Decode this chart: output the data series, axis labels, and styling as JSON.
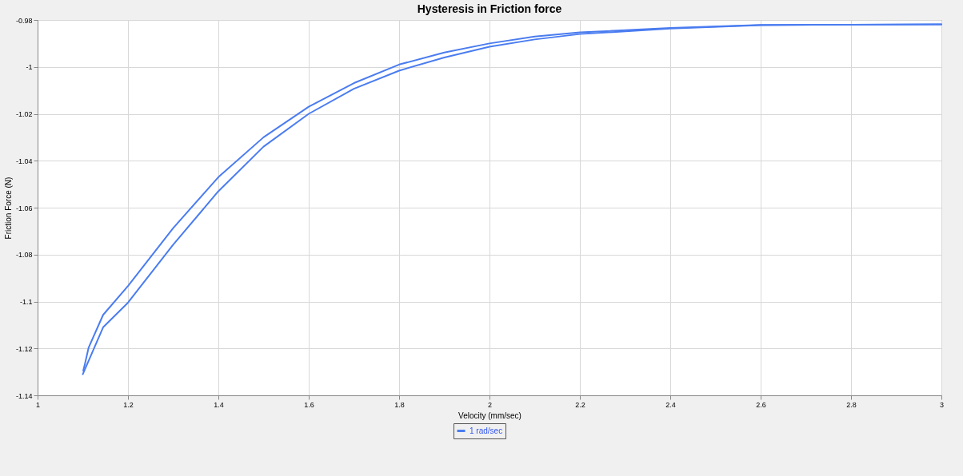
{
  "chart_data": {
    "type": "line",
    "title": "Hysteresis in Friction force",
    "xlabel": "Velocity (mm/sec)",
    "ylabel": "Friction Force (N)",
    "xlim": [
      1,
      3
    ],
    "ylim": [
      -1.14,
      -0.98
    ],
    "xticks": [
      1,
      1.2,
      1.4,
      1.6,
      1.8,
      2,
      2.2,
      2.4,
      2.6,
      2.8,
      3
    ],
    "yticks": [
      -1.14,
      -1.12,
      -1.1,
      -1.08,
      -1.06,
      -1.04,
      -1.02,
      -1,
      -0.98
    ],
    "grid": true,
    "legend": "bottom",
    "marker": "none",
    "line_style": "solid",
    "series": [
      {
        "name": "1 rad/sec",
        "color": "#4a7cf0",
        "x": [
          1.1,
          1.145,
          1.2,
          1.3,
          1.4,
          1.5,
          1.6,
          1.7,
          1.8,
          1.9,
          2,
          2.1,
          2.2,
          2.4,
          2.6,
          2.8,
          3
        ],
        "values": [
          -1.131,
          -1.111,
          -1.1005,
          -1.0758,
          -1.053,
          -1.034,
          -1.02,
          -1.0093,
          -1.0016,
          -0.996,
          -0.9914,
          -0.9883,
          -0.986,
          -0.9837,
          -0.9822,
          -0.982,
          -0.9819
        ]
      },
      {
        "color": "#4a7cf0",
        "x": [
          1.101,
          1.105,
          1.113,
          1.145,
          1.2,
          1.3,
          1.4,
          1.5,
          1.6,
          1.7,
          1.8,
          1.9,
          2,
          2.1,
          2.2,
          2.4,
          2.6,
          2.8,
          3
        ],
        "values": [
          -1.1295,
          -1.1264,
          -1.1196,
          -1.1057,
          -1.0934,
          -1.0687,
          -1.047,
          -1.03,
          -1.017,
          -1.0069,
          -0.999,
          -0.9939,
          -0.99,
          -0.9871,
          -0.9853,
          -0.9834,
          -0.9821,
          -0.982,
          -0.9819
        ]
      }
    ]
  }
}
